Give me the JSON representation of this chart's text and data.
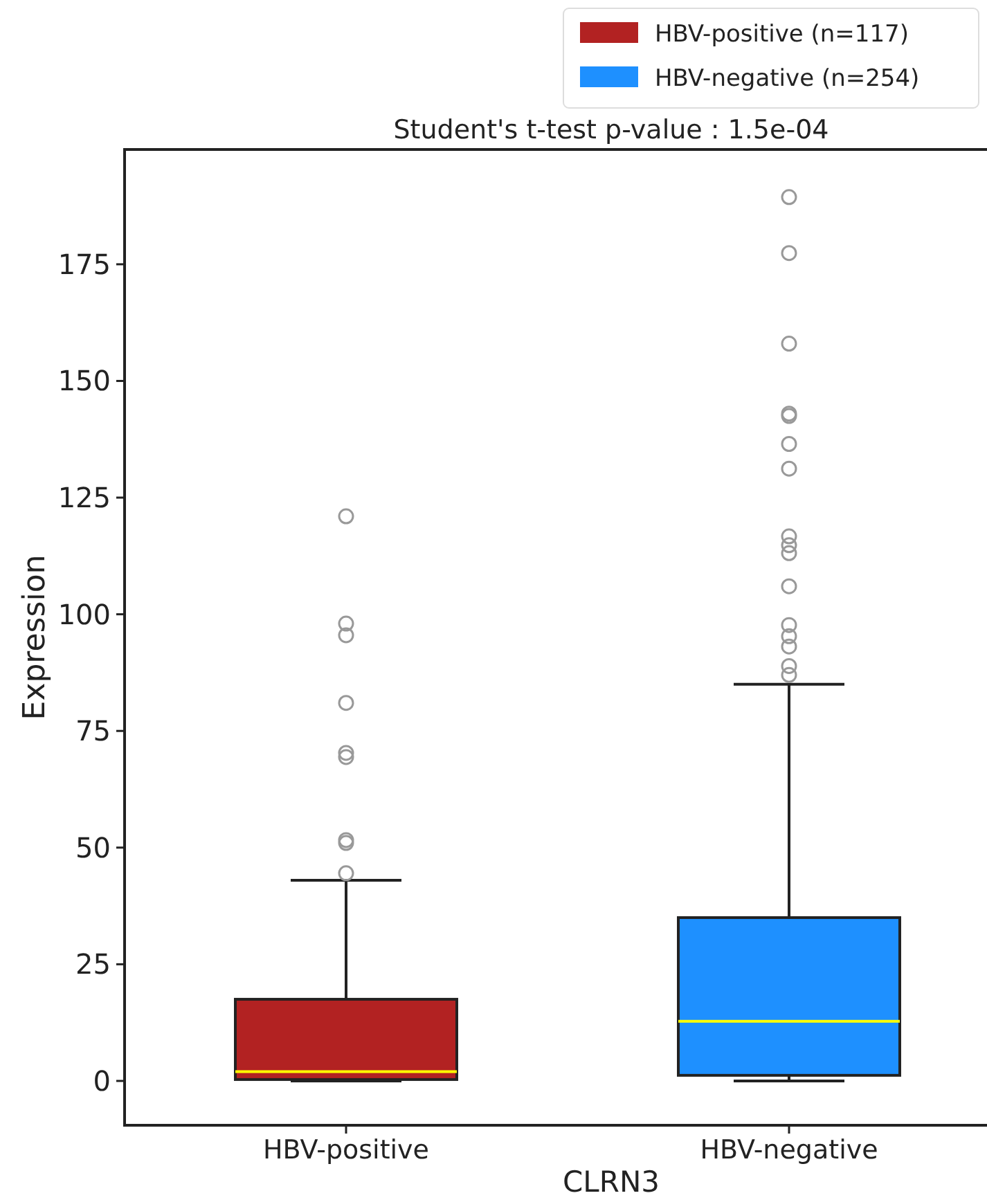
{
  "chart_data": {
    "type": "box",
    "title": "Student's t-test p-value : 1.5e-04",
    "xlabel": "CLRN3",
    "ylabel": "Expression",
    "categories": [
      "HBV-positive",
      "HBV-negative"
    ],
    "series": [
      {
        "name": "HBV-positive (n=117)",
        "color": "#b22222",
        "boxes": [
          {
            "low": 0,
            "q1": 0.3,
            "median": 2,
            "q3": 17.5,
            "high": 43,
            "outliers": [
              121,
              98,
              95.5,
              81,
              70.3,
              69.4,
              51.6,
              51,
              44.5
            ]
          },
          null
        ]
      },
      {
        "name": "HBV-negative (n=254)",
        "color": "#1e90ff",
        "boxes": [
          null,
          {
            "low": 0,
            "q1": 1.2,
            "median": 12.8,
            "q3": 35,
            "high": 85,
            "outliers": [
              189.4,
              177.4,
              158,
              143,
              142.5,
              136.5,
              131.2,
              116.7,
              114.8,
              113.1,
              106,
              97.7,
              95.3,
              93.1,
              88.9,
              87
            ]
          }
        ]
      }
    ],
    "ylim": [
      -9.5,
      199.6
    ],
    "yticks": [
      0,
      25,
      50,
      75,
      100,
      125,
      150,
      175
    ],
    "grid": false,
    "legend": "top right"
  }
}
